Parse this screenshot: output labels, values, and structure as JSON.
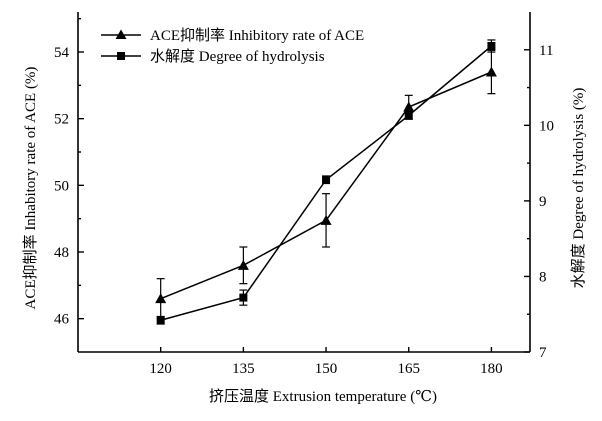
{
  "chart_data": {
    "type": "line",
    "x": [
      120,
      135,
      150,
      165,
      180
    ],
    "xlabel": "挤压温度 Extrusion temperature (℃)",
    "ylabel_left": "ACE抑制率 Inhabitory rate of ACE (%)",
    "ylabel_right": "水解度 Degree of hydrolysis (%)",
    "xlim": [
      105,
      187
    ],
    "ylim_left": [
      45,
      55.2
    ],
    "ylim_right": [
      7,
      11.5
    ],
    "xticks": [
      "120",
      "135",
      "150",
      "165",
      "180"
    ],
    "yticks_left": [
      "46",
      "48",
      "50",
      "52",
      "54"
    ],
    "yticks_right": [
      "7",
      "8",
      "9",
      "10",
      "11"
    ],
    "legend_position": "top-left",
    "series": [
      {
        "name": "ACE抑制率 Inhibitory rate of ACE",
        "axis": "left",
        "marker": "triangle",
        "values": [
          46.6,
          47.6,
          48.95,
          52.35,
          53.4
        ],
        "errors": [
          0.6,
          0.55,
          0.8,
          0.35,
          0.65
        ]
      },
      {
        "name": "水解度 Degree of hydrolysis",
        "axis": "right",
        "marker": "square",
        "values": [
          7.42,
          7.72,
          9.28,
          10.13,
          11.05
        ],
        "errors": [
          0.05,
          0.1,
          0.05,
          0.05,
          0.08
        ]
      }
    ]
  }
}
